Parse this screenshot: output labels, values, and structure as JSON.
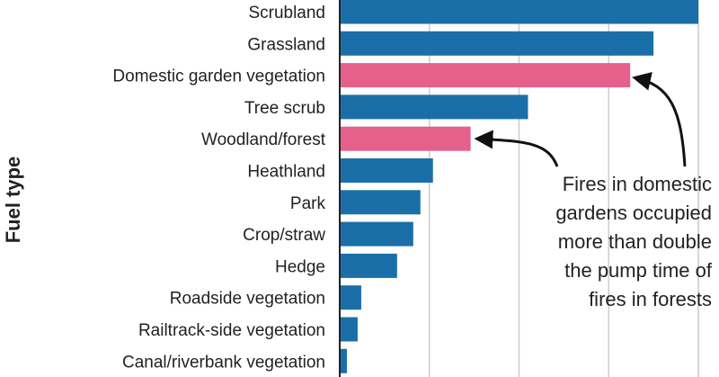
{
  "chart_data": {
    "type": "bar",
    "orientation": "horizontal",
    "title": "",
    "xlabel": "",
    "ylabel": "Fuel type",
    "categories": [
      "Scrubland",
      "Grassland",
      "Domestic garden vegetation",
      "Tree scrub",
      "Woodland/forest",
      "Heathland",
      "Park",
      "Crop/straw",
      "Hedge",
      "Roadside vegetation",
      "Railtrack-side vegetation",
      "Canal/riverbank vegetation"
    ],
    "values": [
      100,
      87.5,
      81,
      52.5,
      36.5,
      26,
      22.5,
      20.5,
      16,
      6,
      5,
      2
    ],
    "highlighted": [
      "Domestic garden vegetation",
      "Woodland/forest"
    ],
    "xlim": [
      0,
      100
    ],
    "grid": true,
    "colors": {
      "default": "#1b6fa8",
      "highlight": "#e5608a",
      "grid": "#cccccc",
      "axis": "#222222"
    },
    "annotation": {
      "lines": [
        "Fires in domestic",
        "gardens occupied",
        "more than double",
        "the pump time of",
        "fires in forests"
      ],
      "points_to": [
        "Domestic garden vegetation",
        "Woodland/forest"
      ]
    }
  }
}
